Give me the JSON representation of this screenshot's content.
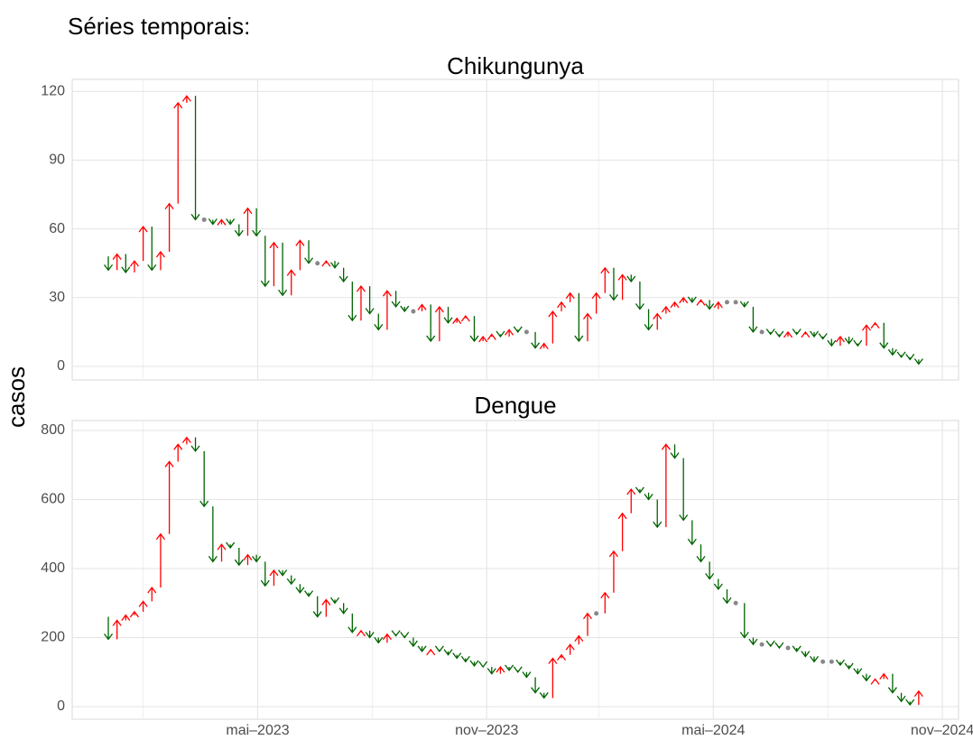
{
  "heading": "Séries temporais:",
  "y_label": "casos",
  "chart_data": [
    {
      "type": "arrow",
      "title": "Chikungunya",
      "up_color": "#ff0000",
      "down_color": "#006400",
      "flat_color": "#888888",
      "grid": true,
      "x": [
        "2022-12-25",
        "2023-01-01",
        "2023-01-08",
        "2023-01-15",
        "2023-01-22",
        "2023-01-29",
        "2023-02-05",
        "2023-02-12",
        "2023-02-19",
        "2023-02-26",
        "2023-03-05",
        "2023-03-12",
        "2023-03-19",
        "2023-03-26",
        "2023-04-02",
        "2023-04-09",
        "2023-04-16",
        "2023-04-23",
        "2023-04-30",
        "2023-05-07",
        "2023-05-14",
        "2023-05-21",
        "2023-05-28",
        "2023-06-04",
        "2023-06-11",
        "2023-06-18",
        "2023-06-25",
        "2023-07-02",
        "2023-07-09",
        "2023-07-16",
        "2023-07-23",
        "2023-07-30",
        "2023-08-06",
        "2023-08-13",
        "2023-08-20",
        "2023-08-27",
        "2023-09-03",
        "2023-09-10",
        "2023-09-17",
        "2023-09-24",
        "2023-10-01",
        "2023-10-08",
        "2023-10-15",
        "2023-10-22",
        "2023-10-29",
        "2023-11-05",
        "2023-11-12",
        "2023-11-19",
        "2023-11-26",
        "2023-12-03",
        "2023-12-10",
        "2023-12-17",
        "2023-12-24",
        "2023-12-31",
        "2024-01-07",
        "2024-01-14",
        "2024-01-21",
        "2024-01-28",
        "2024-02-04",
        "2024-02-11",
        "2024-02-18",
        "2024-02-25",
        "2024-03-03",
        "2024-03-10",
        "2024-03-17",
        "2024-03-24",
        "2024-03-31",
        "2024-04-07",
        "2024-04-14",
        "2024-04-21",
        "2024-04-28",
        "2024-05-05",
        "2024-05-12",
        "2024-05-19",
        "2024-05-26",
        "2024-06-02",
        "2024-06-09",
        "2024-06-16",
        "2024-06-23",
        "2024-06-30",
        "2024-07-07",
        "2024-07-14",
        "2024-07-21",
        "2024-07-28",
        "2024-08-04",
        "2024-08-11",
        "2024-08-18",
        "2024-08-25",
        "2024-09-01",
        "2024-09-08",
        "2024-09-15",
        "2024-09-22",
        "2024-09-29",
        "2024-10-06",
        "2024-10-13"
      ],
      "values": [
        48,
        42,
        49,
        41,
        46,
        61,
        42,
        50,
        71,
        115,
        118,
        64,
        64,
        62,
        64,
        62,
        57,
        69,
        57,
        35,
        54,
        31,
        42,
        55,
        45,
        45,
        46,
        43,
        37,
        20,
        35,
        23,
        16,
        33,
        26,
        24,
        24,
        27,
        11,
        26,
        19,
        21,
        22,
        11,
        13,
        14,
        13,
        16,
        15,
        15,
        8,
        10,
        24,
        28,
        32,
        11,
        23,
        32,
        43,
        29,
        40,
        37,
        25,
        16,
        23,
        26,
        28,
        30,
        28,
        29,
        25,
        28,
        28,
        28,
        26,
        15,
        15,
        14,
        13,
        15,
        14,
        15,
        13,
        12,
        9,
        13,
        10,
        9,
        18,
        19,
        8,
        5,
        4,
        3,
        1
      ],
      "xlim": [
        "2022-12-03",
        "2024-11-14"
      ],
      "ylim": [
        -5.9,
        125.2
      ],
      "yticks": [
        0,
        30,
        60,
        90,
        120
      ]
    },
    {
      "type": "arrow",
      "title": "Dengue",
      "up_color": "#ff0000",
      "down_color": "#006400",
      "flat_color": "#888888",
      "grid": true,
      "x": [
        "2022-12-25",
        "2023-01-01",
        "2023-01-08",
        "2023-01-15",
        "2023-01-22",
        "2023-01-29",
        "2023-02-05",
        "2023-02-12",
        "2023-02-19",
        "2023-02-26",
        "2023-03-05",
        "2023-03-12",
        "2023-03-19",
        "2023-03-26",
        "2023-04-02",
        "2023-04-09",
        "2023-04-16",
        "2023-04-23",
        "2023-04-30",
        "2023-05-07",
        "2023-05-14",
        "2023-05-21",
        "2023-05-28",
        "2023-06-04",
        "2023-06-11",
        "2023-06-18",
        "2023-06-25",
        "2023-07-02",
        "2023-07-09",
        "2023-07-16",
        "2023-07-23",
        "2023-07-30",
        "2023-08-06",
        "2023-08-13",
        "2023-08-20",
        "2023-08-27",
        "2023-09-03",
        "2023-09-10",
        "2023-09-17",
        "2023-09-24",
        "2023-10-01",
        "2023-10-08",
        "2023-10-15",
        "2023-10-22",
        "2023-10-29",
        "2023-11-05",
        "2023-11-12",
        "2023-11-19",
        "2023-11-26",
        "2023-12-03",
        "2023-12-10",
        "2023-12-17",
        "2023-12-24",
        "2023-12-31",
        "2024-01-07",
        "2024-01-14",
        "2024-01-21",
        "2024-01-28",
        "2024-02-04",
        "2024-02-11",
        "2024-02-18",
        "2024-02-25",
        "2024-03-03",
        "2024-03-10",
        "2024-03-17",
        "2024-03-24",
        "2024-03-31",
        "2024-04-07",
        "2024-04-14",
        "2024-04-21",
        "2024-04-28",
        "2024-05-05",
        "2024-05-12",
        "2024-05-19",
        "2024-05-26",
        "2024-06-02",
        "2024-06-09",
        "2024-06-16",
        "2024-06-23",
        "2024-06-30",
        "2024-07-07",
        "2024-07-14",
        "2024-07-21",
        "2024-07-28",
        "2024-08-04",
        "2024-08-11",
        "2024-08-18",
        "2024-08-25",
        "2024-09-01",
        "2024-09-08",
        "2024-09-15",
        "2024-09-22",
        "2024-09-29",
        "2024-10-06",
        "2024-10-13"
      ],
      "values": [
        260,
        195,
        250,
        265,
        275,
        305,
        345,
        500,
        710,
        760,
        780,
        740,
        580,
        420,
        470,
        460,
        410,
        440,
        420,
        350,
        395,
        380,
        355,
        330,
        320,
        260,
        310,
        300,
        270,
        215,
        220,
        200,
        185,
        210,
        205,
        200,
        175,
        160,
        165,
        160,
        150,
        140,
        130,
        118,
        115,
        95,
        115,
        105,
        100,
        85,
        40,
        25,
        140,
        150,
        180,
        205,
        270,
        270,
        330,
        450,
        560,
        630,
        620,
        600,
        520,
        760,
        720,
        540,
        470,
        420,
        370,
        340,
        300,
        300,
        200,
        180,
        180,
        175,
        170,
        170,
        160,
        145,
        130,
        130,
        130,
        120,
        110,
        95,
        75,
        80,
        95,
        40,
        15,
        5,
        45
      ],
      "xlim": [
        "2022-12-03",
        "2024-11-14"
      ],
      "xticks": [
        {
          "value": "2023-05-01",
          "label": "mai–2023"
        },
        {
          "value": "2023-11-01",
          "label": "nov–2023"
        },
        {
          "value": "2024-05-01",
          "label": "mai–2024"
        },
        {
          "value": "2024-11-01",
          "label": "nov–2024"
        }
      ],
      "ylim": [
        -36.6,
        828.8
      ],
      "yticks": [
        0,
        200,
        400,
        600,
        800
      ]
    }
  ]
}
